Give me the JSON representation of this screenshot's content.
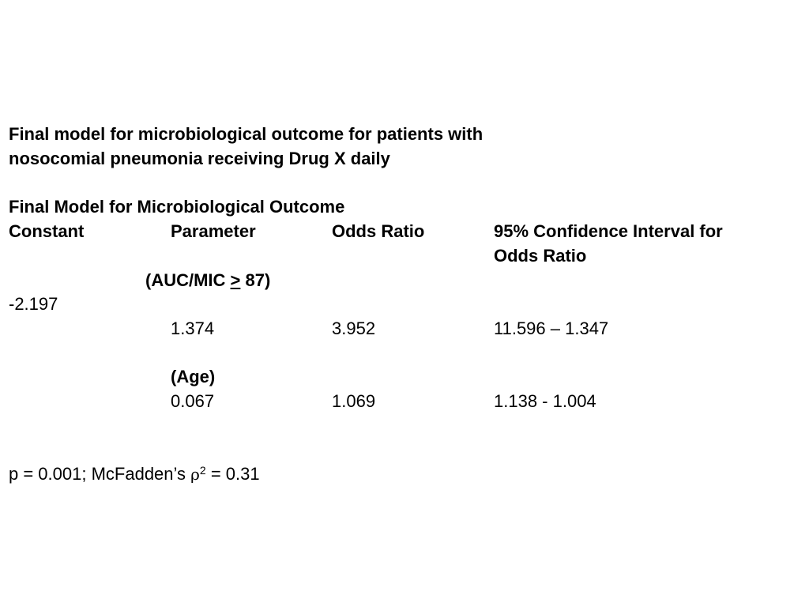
{
  "title": {
    "line1": "Final model for microbiological outcome for patients with",
    "line2": "nosocomial pneumonia receiving Drug X daily"
  },
  "subtitle": "Final Model for Microbiological Outcome",
  "table": {
    "headers": {
      "constant": "Constant",
      "parameter": "Parameter",
      "odds_ratio": "Odds Ratio",
      "ci_line1": "95% Confidence Interval for",
      "ci_line2": "Odds Ratio"
    },
    "auc_label": {
      "open": "(AUC/MIC ",
      "symbol": ">",
      "close": " 87)"
    },
    "constant_value": "-2.197",
    "rows": [
      {
        "parameter": "1.374",
        "odds_ratio": "3.952",
        "ci": "11.596 – 1.347"
      },
      {
        "label": "(Age)",
        "parameter": "0.067",
        "odds_ratio": "1.069",
        "ci": "1.138  -  1.004"
      }
    ]
  },
  "footer": {
    "prefix": "p = 0.001; McFadden’s ",
    "rho_symbol": "ρ",
    "exponent": "2",
    "suffix": " = 0.31"
  }
}
